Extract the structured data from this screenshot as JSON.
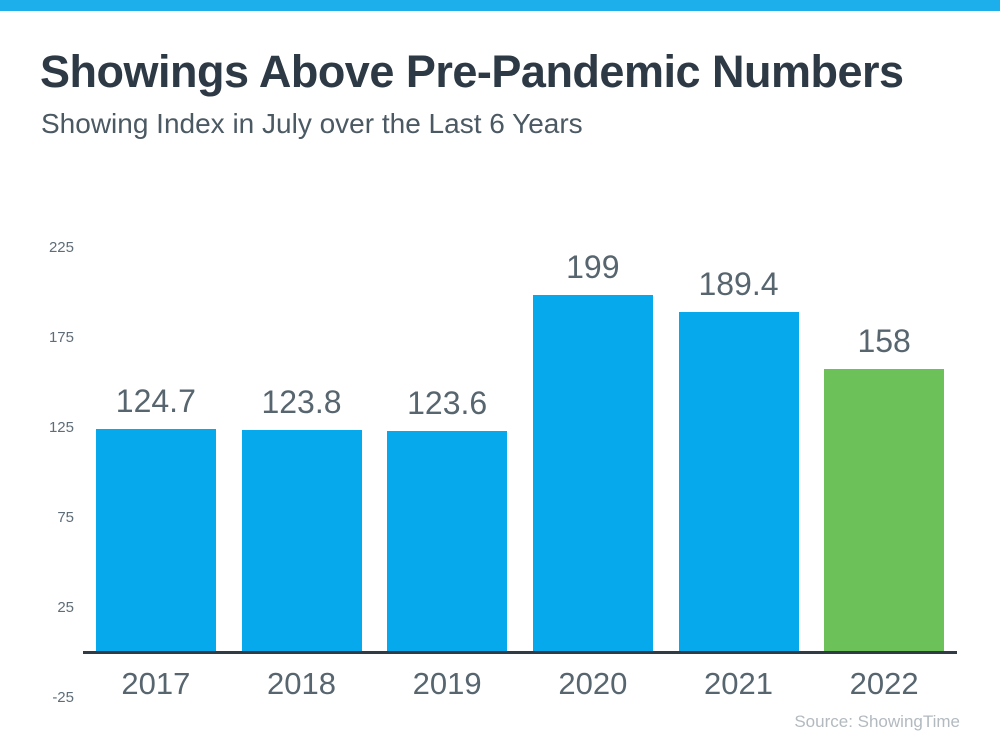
{
  "header": {
    "title": "Showings Above Pre-Pandemic Numbers",
    "subtitle": "Showing Index in July over the Last 6 Years"
  },
  "footer": {
    "source": "Source: ShowingTime"
  },
  "colors": {
    "accent_strip": "#1daeec",
    "bar_blue": "#05a9ec",
    "bar_green": "#6cc158",
    "title_text": "#2d3a45",
    "subtitle_text": "#4b5963",
    "tick_label_text": "#5e6d78",
    "value_label_text": "#57656f",
    "axis_line": "#2f3c46",
    "source_text": "#b2bac0",
    "background": "#ffffff"
  },
  "chart_data": {
    "type": "bar",
    "title": "Showings Above Pre-Pandemic Numbers",
    "subtitle": "Showing Index in July over the Last 6 Years",
    "categories": [
      "2017",
      "2018",
      "2019",
      "2020",
      "2021",
      "2022"
    ],
    "values": [
      124.7,
      123.8,
      123.6,
      199,
      189.4,
      158
    ],
    "value_labels": [
      "124.7",
      "123.8",
      "123.6",
      "199",
      "189.4",
      "158"
    ],
    "bar_colors": [
      "#05a9ec",
      "#05a9ec",
      "#05a9ec",
      "#05a9ec",
      "#05a9ec",
      "#6cc158"
    ],
    "highlighted_category": "2022",
    "y_ticks": [
      225,
      175,
      125,
      75,
      25,
      -25
    ],
    "ylim": [
      -25,
      235
    ],
    "baseline_value": 0,
    "grid": false,
    "legend": false,
    "xlabel": "",
    "ylabel": "",
    "source": "Source: ShowingTime"
  }
}
